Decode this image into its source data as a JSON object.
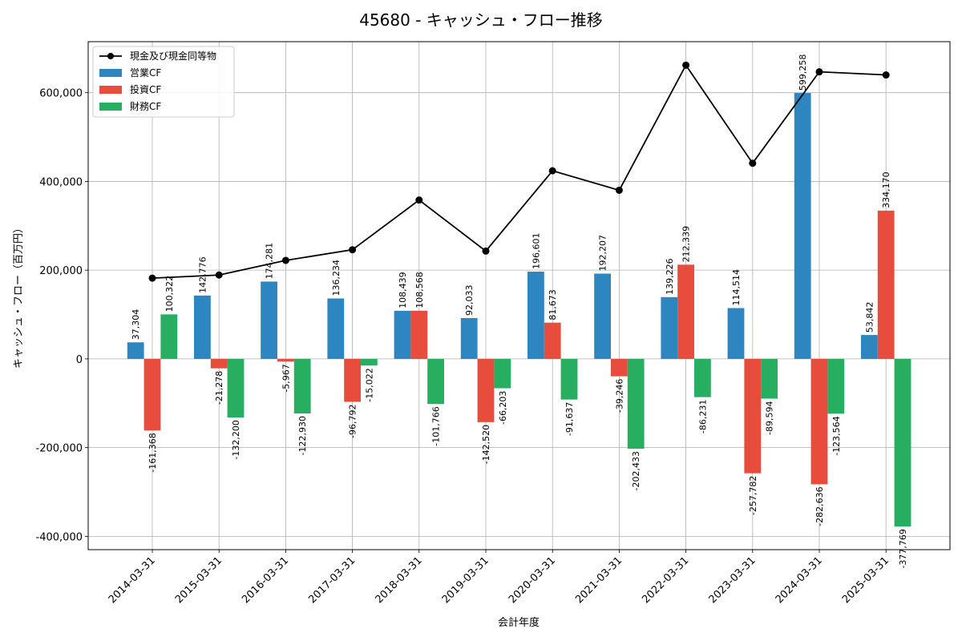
{
  "chart_data": {
    "type": "bar",
    "title": "45680 - キャッシュ・フロー推移",
    "xlabel": "会計年度",
    "ylabel": "キャッシュ・フロー（百万円）",
    "ylim": [
      -430000,
      715000
    ],
    "yticks": [
      -400000,
      -200000,
      0,
      200000,
      400000,
      600000
    ],
    "ytick_labels": [
      "-400,000",
      "-200,000",
      "0",
      "200,000",
      "400,000",
      "600,000"
    ],
    "grid": true,
    "legend_position": "top-left",
    "categories": [
      "2014-03-31",
      "2015-03-31",
      "2016-03-31",
      "2017-03-31",
      "2018-03-31",
      "2019-03-31",
      "2020-03-31",
      "2021-03-31",
      "2022-03-31",
      "2023-03-31",
      "2024-03-31",
      "2025-03-31"
    ],
    "series": [
      {
        "name": "営業CF",
        "kind": "bar",
        "color": "#2e86c1",
        "values": [
          37304,
          142776,
          174281,
          136234,
          108439,
          92033,
          196601,
          192207,
          139226,
          114514,
          599258,
          53842
        ],
        "labels": [
          "37,304",
          "142,776",
          "174,281",
          "136,234",
          "108,439",
          "92,033",
          "196,601",
          "192,207",
          "139,226",
          "114,514",
          "599,258",
          "53,842"
        ]
      },
      {
        "name": "投資CF",
        "kind": "bar",
        "color": "#e74c3c",
        "values": [
          -161368,
          -21278,
          -5967,
          -96792,
          108568,
          -142520,
          81673,
          -39246,
          212339,
          -257782,
          -282636,
          334170
        ],
        "labels": [
          "-161,368",
          "-21,278",
          "-5,967",
          "-96,792",
          "108,568",
          "-142,520",
          "81,673",
          "-39,246",
          "212,339",
          "-257,782",
          "-282,636",
          "334,170"
        ]
      },
      {
        "name": "財務CF",
        "kind": "bar",
        "color": "#27ae60",
        "values": [
          100322,
          -132200,
          -122930,
          -15022,
          -101766,
          -66203,
          -91637,
          -202433,
          -86231,
          -89594,
          -123564,
          -377769
        ],
        "labels": [
          "100,322",
          "-132,200",
          "-122,930",
          "-15,022",
          "-101,766",
          "-66,203",
          "-91,637",
          "-202,433",
          "-86,231",
          "-89,594",
          "-123,564",
          "-377,769"
        ]
      },
      {
        "name": "現金及び現金同等物",
        "kind": "line",
        "color": "#000000",
        "values": [
          182000,
          189000,
          222000,
          246000,
          358000,
          243000,
          424000,
          380000,
          662000,
          441000,
          647000,
          640000
        ]
      }
    ]
  }
}
